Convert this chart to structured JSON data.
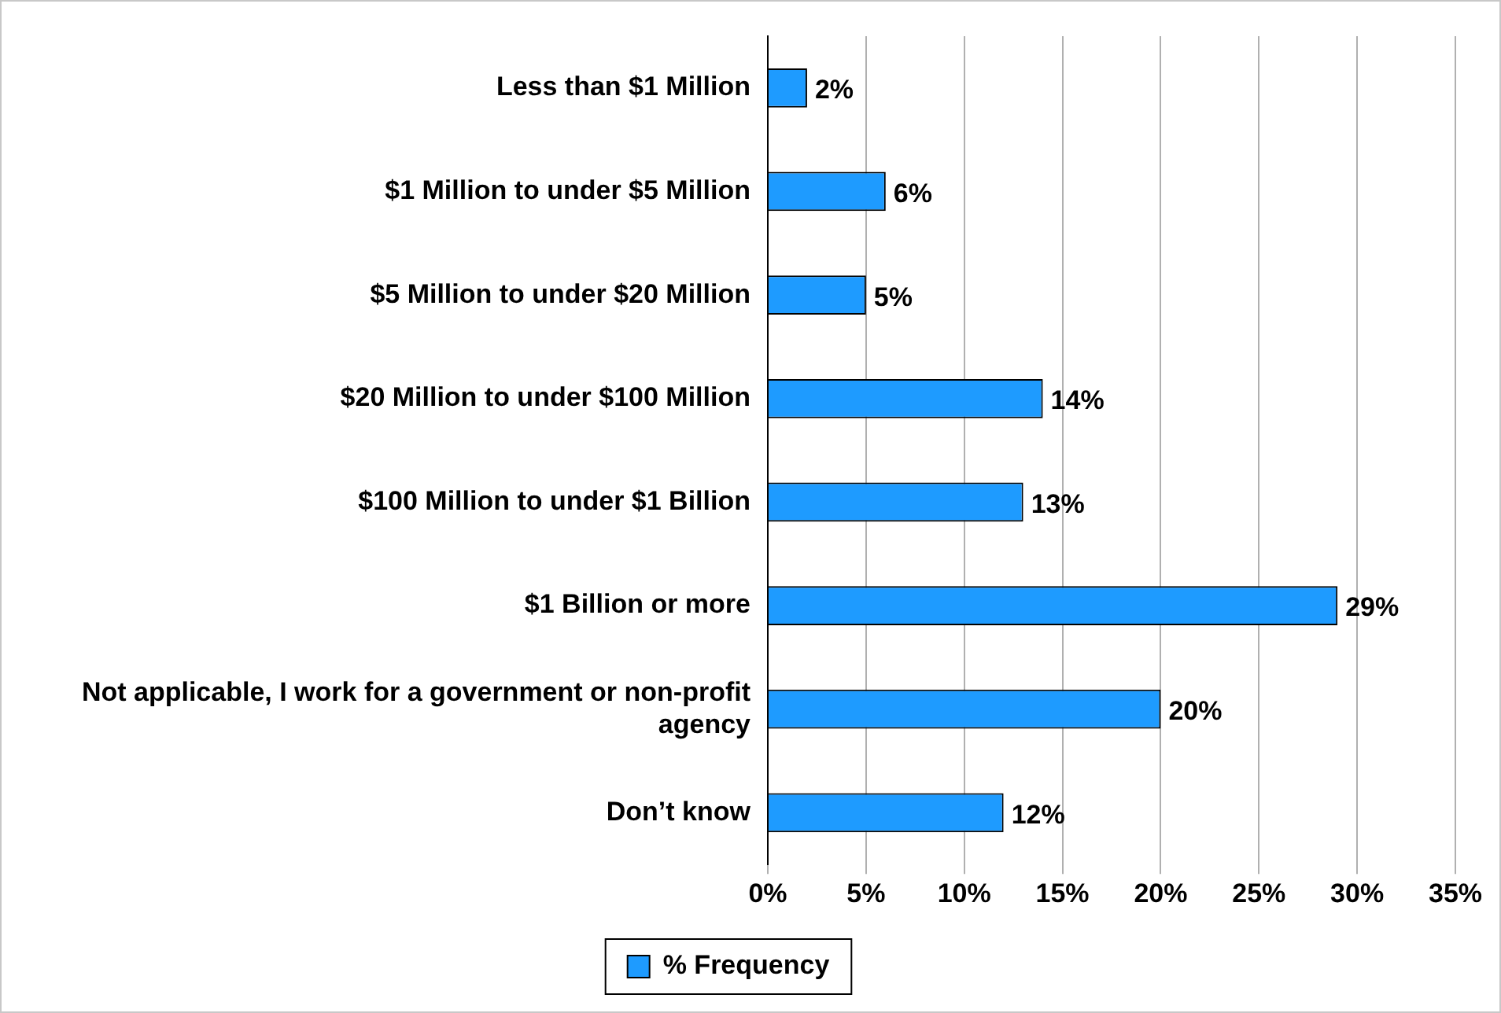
{
  "chart_data": {
    "type": "bar",
    "orientation": "horizontal",
    "categories": [
      "Less than $1 Million",
      "$1 Million to under $5 Million",
      "$5 Million to under $20 Million",
      "$20 Million to under $100 Million",
      "$100 Million to under $1 Billion",
      "$1 Billion or more",
      "Not applicable, I work for a government or non-profit agency",
      "Don’t know"
    ],
    "series": [
      {
        "name": "% Frequency",
        "color": "#1e9bff",
        "values": [
          2,
          6,
          5,
          14,
          13,
          29,
          20,
          12
        ],
        "value_labels": [
          "2%",
          "6%",
          "5%",
          "14%",
          "13%",
          "29%",
          "20%",
          "12%"
        ]
      }
    ],
    "xlim": [
      0,
      35
    ],
    "xticks": [
      {
        "value": 0,
        "label": "0%"
      },
      {
        "value": 5,
        "label": "5%"
      },
      {
        "value": 10,
        "label": "10%"
      },
      {
        "value": 15,
        "label": "15%"
      },
      {
        "value": 20,
        "label": "20%"
      },
      {
        "value": 25,
        "label": "25%"
      },
      {
        "value": 30,
        "label": "30%"
      },
      {
        "value": 35,
        "label": "35%"
      }
    ],
    "grid": "x",
    "legend": "bottom"
  }
}
